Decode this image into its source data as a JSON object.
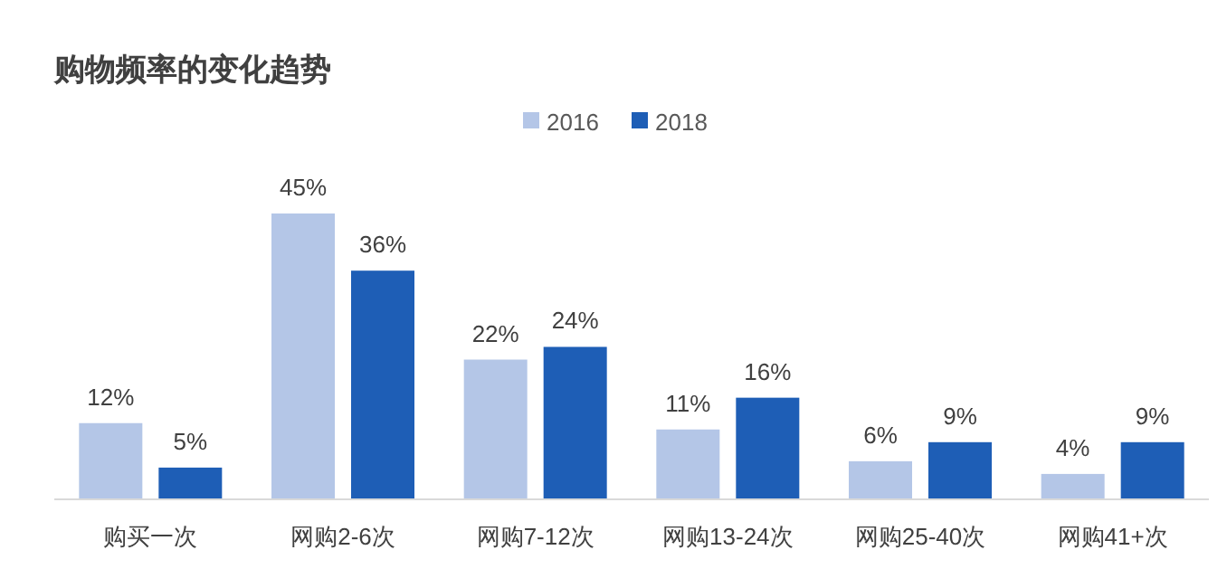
{
  "chart_data": {
    "type": "bar",
    "title": "购物频率的变化趋势",
    "legend": "top",
    "categories": [
      "购买一次",
      "网购2-6次",
      "网购7-12次",
      "网购13-24次",
      "网购25-40次",
      "网购41+次"
    ],
    "series": [
      {
        "name": "2016",
        "color": "#b4c6e7",
        "values": [
          12,
          45,
          22,
          11,
          6,
          4
        ],
        "value_labels": [
          "12%",
          "45%",
          "22%",
          "11%",
          "6%",
          "4%"
        ]
      },
      {
        "name": "2018",
        "color": "#1e5eb6",
        "values": [
          5,
          36,
          24,
          16,
          9,
          9
        ],
        "value_labels": [
          "5%",
          "36%",
          "24%",
          "16%",
          "9%",
          "9%"
        ]
      }
    ]
  }
}
